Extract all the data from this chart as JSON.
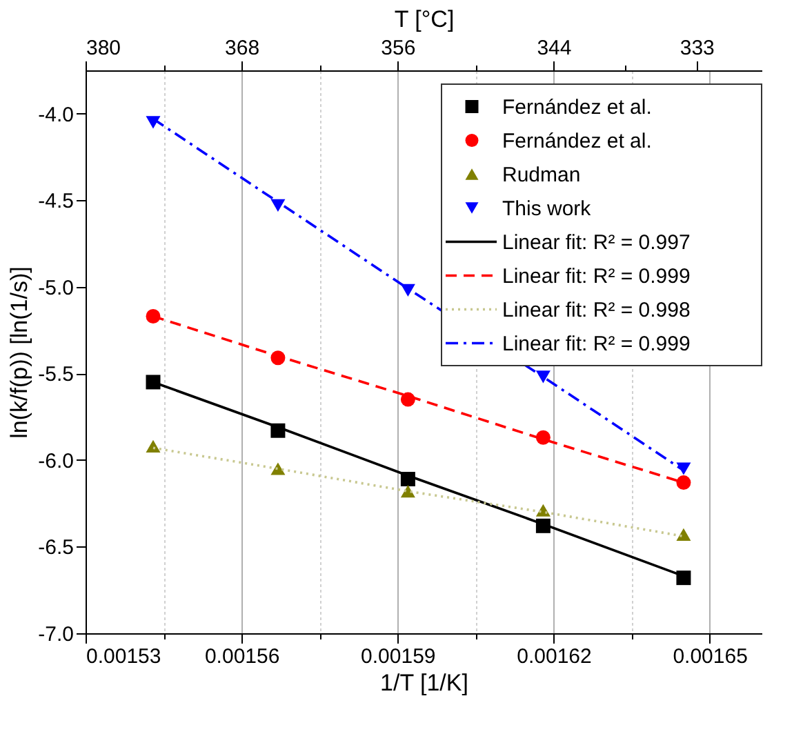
{
  "chart_data": {
    "type": "scatter",
    "xlabel": "1/T [1/K]",
    "ylabel": "ln(k/f(p)) [ln(1/s)]",
    "x2label": "T [°C]",
    "x": [
      0.001543,
      0.001567,
      0.001592,
      0.001618,
      0.001645
    ],
    "series": [
      {
        "name": "Fernández et al.",
        "color": "#000000",
        "marker": "square",
        "values": [
          -5.55,
          -5.83,
          -6.11,
          -6.38,
          -6.68
        ]
      },
      {
        "name": "Fernández et al.",
        "color": "#ff0000",
        "marker": "circle",
        "values": [
          -5.17,
          -5.41,
          -5.65,
          -5.87,
          -6.13
        ]
      },
      {
        "name": "Rudman",
        "color": "#808000",
        "marker": "triangle",
        "values": [
          -5.92,
          -6.05,
          -6.18,
          -6.29,
          -6.43
        ]
      },
      {
        "name": "This work",
        "color": "#0000ff",
        "marker": "triangle-down",
        "values": [
          -4.05,
          -4.53,
          -5.02,
          -5.52,
          -6.05
        ]
      },
      {
        "name": "Linear fit: R² = 0.997",
        "type": "line",
        "color": "#000000",
        "line_style": "solid",
        "values": [
          -5.55,
          -5.81,
          -6.09,
          -6.37,
          -6.67
        ]
      },
      {
        "name": "Linear fit: R² = 0.999",
        "type": "line",
        "color": "#ff0000",
        "line_style": "dashed",
        "values": [
          -5.17,
          -5.4,
          -5.63,
          -5.88,
          -6.13
        ]
      },
      {
        "name": "Linear fit: R² = 0.998",
        "type": "line",
        "color": "#c8c890",
        "line_style": "dotted",
        "values": [
          -5.93,
          -6.05,
          -6.18,
          -6.3,
          -6.44
        ]
      },
      {
        "name": "Linear fit: R² = 0.999",
        "type": "line",
        "color": "#0000ff",
        "line_style": "dashdot",
        "values": [
          -4.03,
          -4.51,
          -5.01,
          -5.52,
          -6.06
        ]
      }
    ],
    "xlim": [
      0.00153,
      0.00166
    ],
    "ylim": [
      -7.0,
      -3.75
    ],
    "xticks": [
      0.00153,
      {
        "value": 0.001545,
        "label": null
      },
      0.00156,
      {
        "value": 0.001575,
        "label": null
      },
      0.00159,
      {
        "value": 0.001605,
        "label": null
      },
      0.00162,
      {
        "value": 0.001635,
        "label": null
      },
      0.00165
    ],
    "yticks": [
      {
        "value": -7.0,
        "label": "-7.0"
      },
      {
        "value": -6.5,
        "label": "-6.5"
      },
      {
        "value": -6.0,
        "label": "-6.0"
      },
      {
        "value": -5.5,
        "label": "-5.5"
      },
      {
        "value": -5.0,
        "label": "-5.0"
      },
      {
        "value": -4.5,
        "label": "-4.5"
      },
      {
        "value": -4.0,
        "label": "-4.0"
      }
    ],
    "x2lim": [
      380,
      328
    ],
    "x2ticks": [
      380,
      {
        "value": 374,
        "label": null
      },
      368,
      {
        "value": 362,
        "label": null
      },
      356,
      {
        "value": 350,
        "label": null
      },
      344,
      {
        "value": 338.5,
        "label": null
      },
      333
    ],
    "grid": "x",
    "legend": "top right"
  }
}
